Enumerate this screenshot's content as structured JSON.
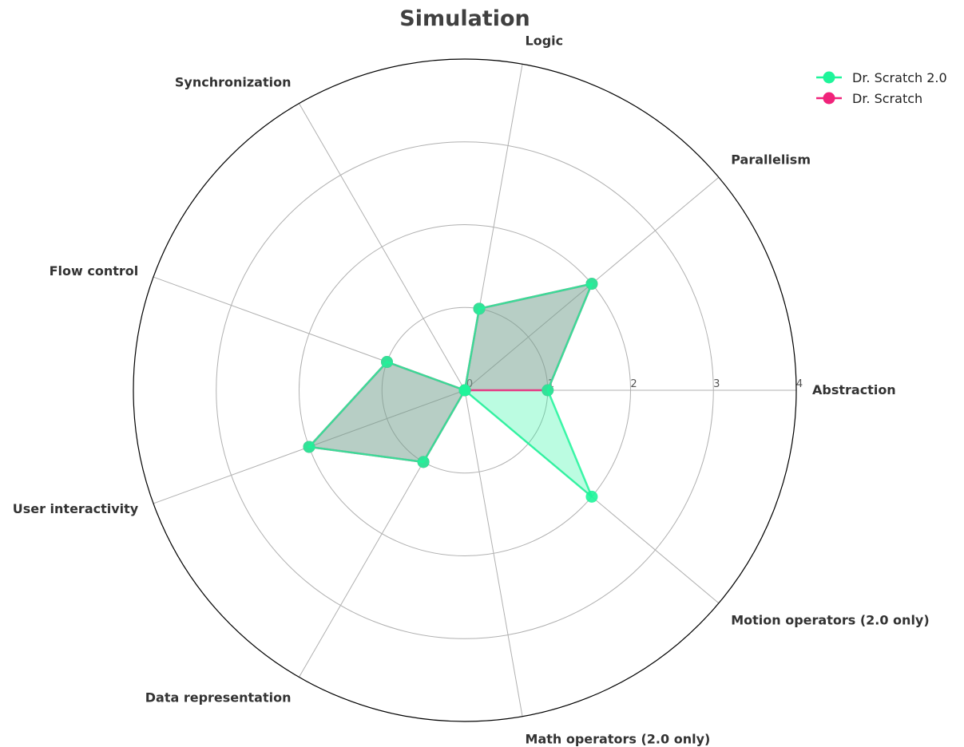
{
  "chart_data": {
    "type": "radar",
    "title": "Simulation",
    "axes": [
      "Abstraction",
      "Parallelism",
      "Logic",
      "Synchronization",
      "Flow control",
      "User interactivity",
      "Data representation",
      "Math operators (2.0 only)",
      "Motion operators (2.0 only)"
    ],
    "rlim": [
      0,
      4
    ],
    "rticks": [
      "0",
      "1",
      "2",
      "3",
      "4"
    ],
    "grid": true,
    "legend_position": "top-right",
    "series": [
      {
        "name": "Dr. Scratch 2.0",
        "color": "#1ef59a",
        "values": [
          1,
          2,
          1,
          0,
          1,
          2,
          1,
          0,
          2
        ]
      },
      {
        "name": "Dr. Scratch",
        "color": "#f0237a",
        "values": [
          1,
          2,
          1,
          0,
          1,
          2,
          1,
          0,
          0
        ]
      }
    ]
  }
}
